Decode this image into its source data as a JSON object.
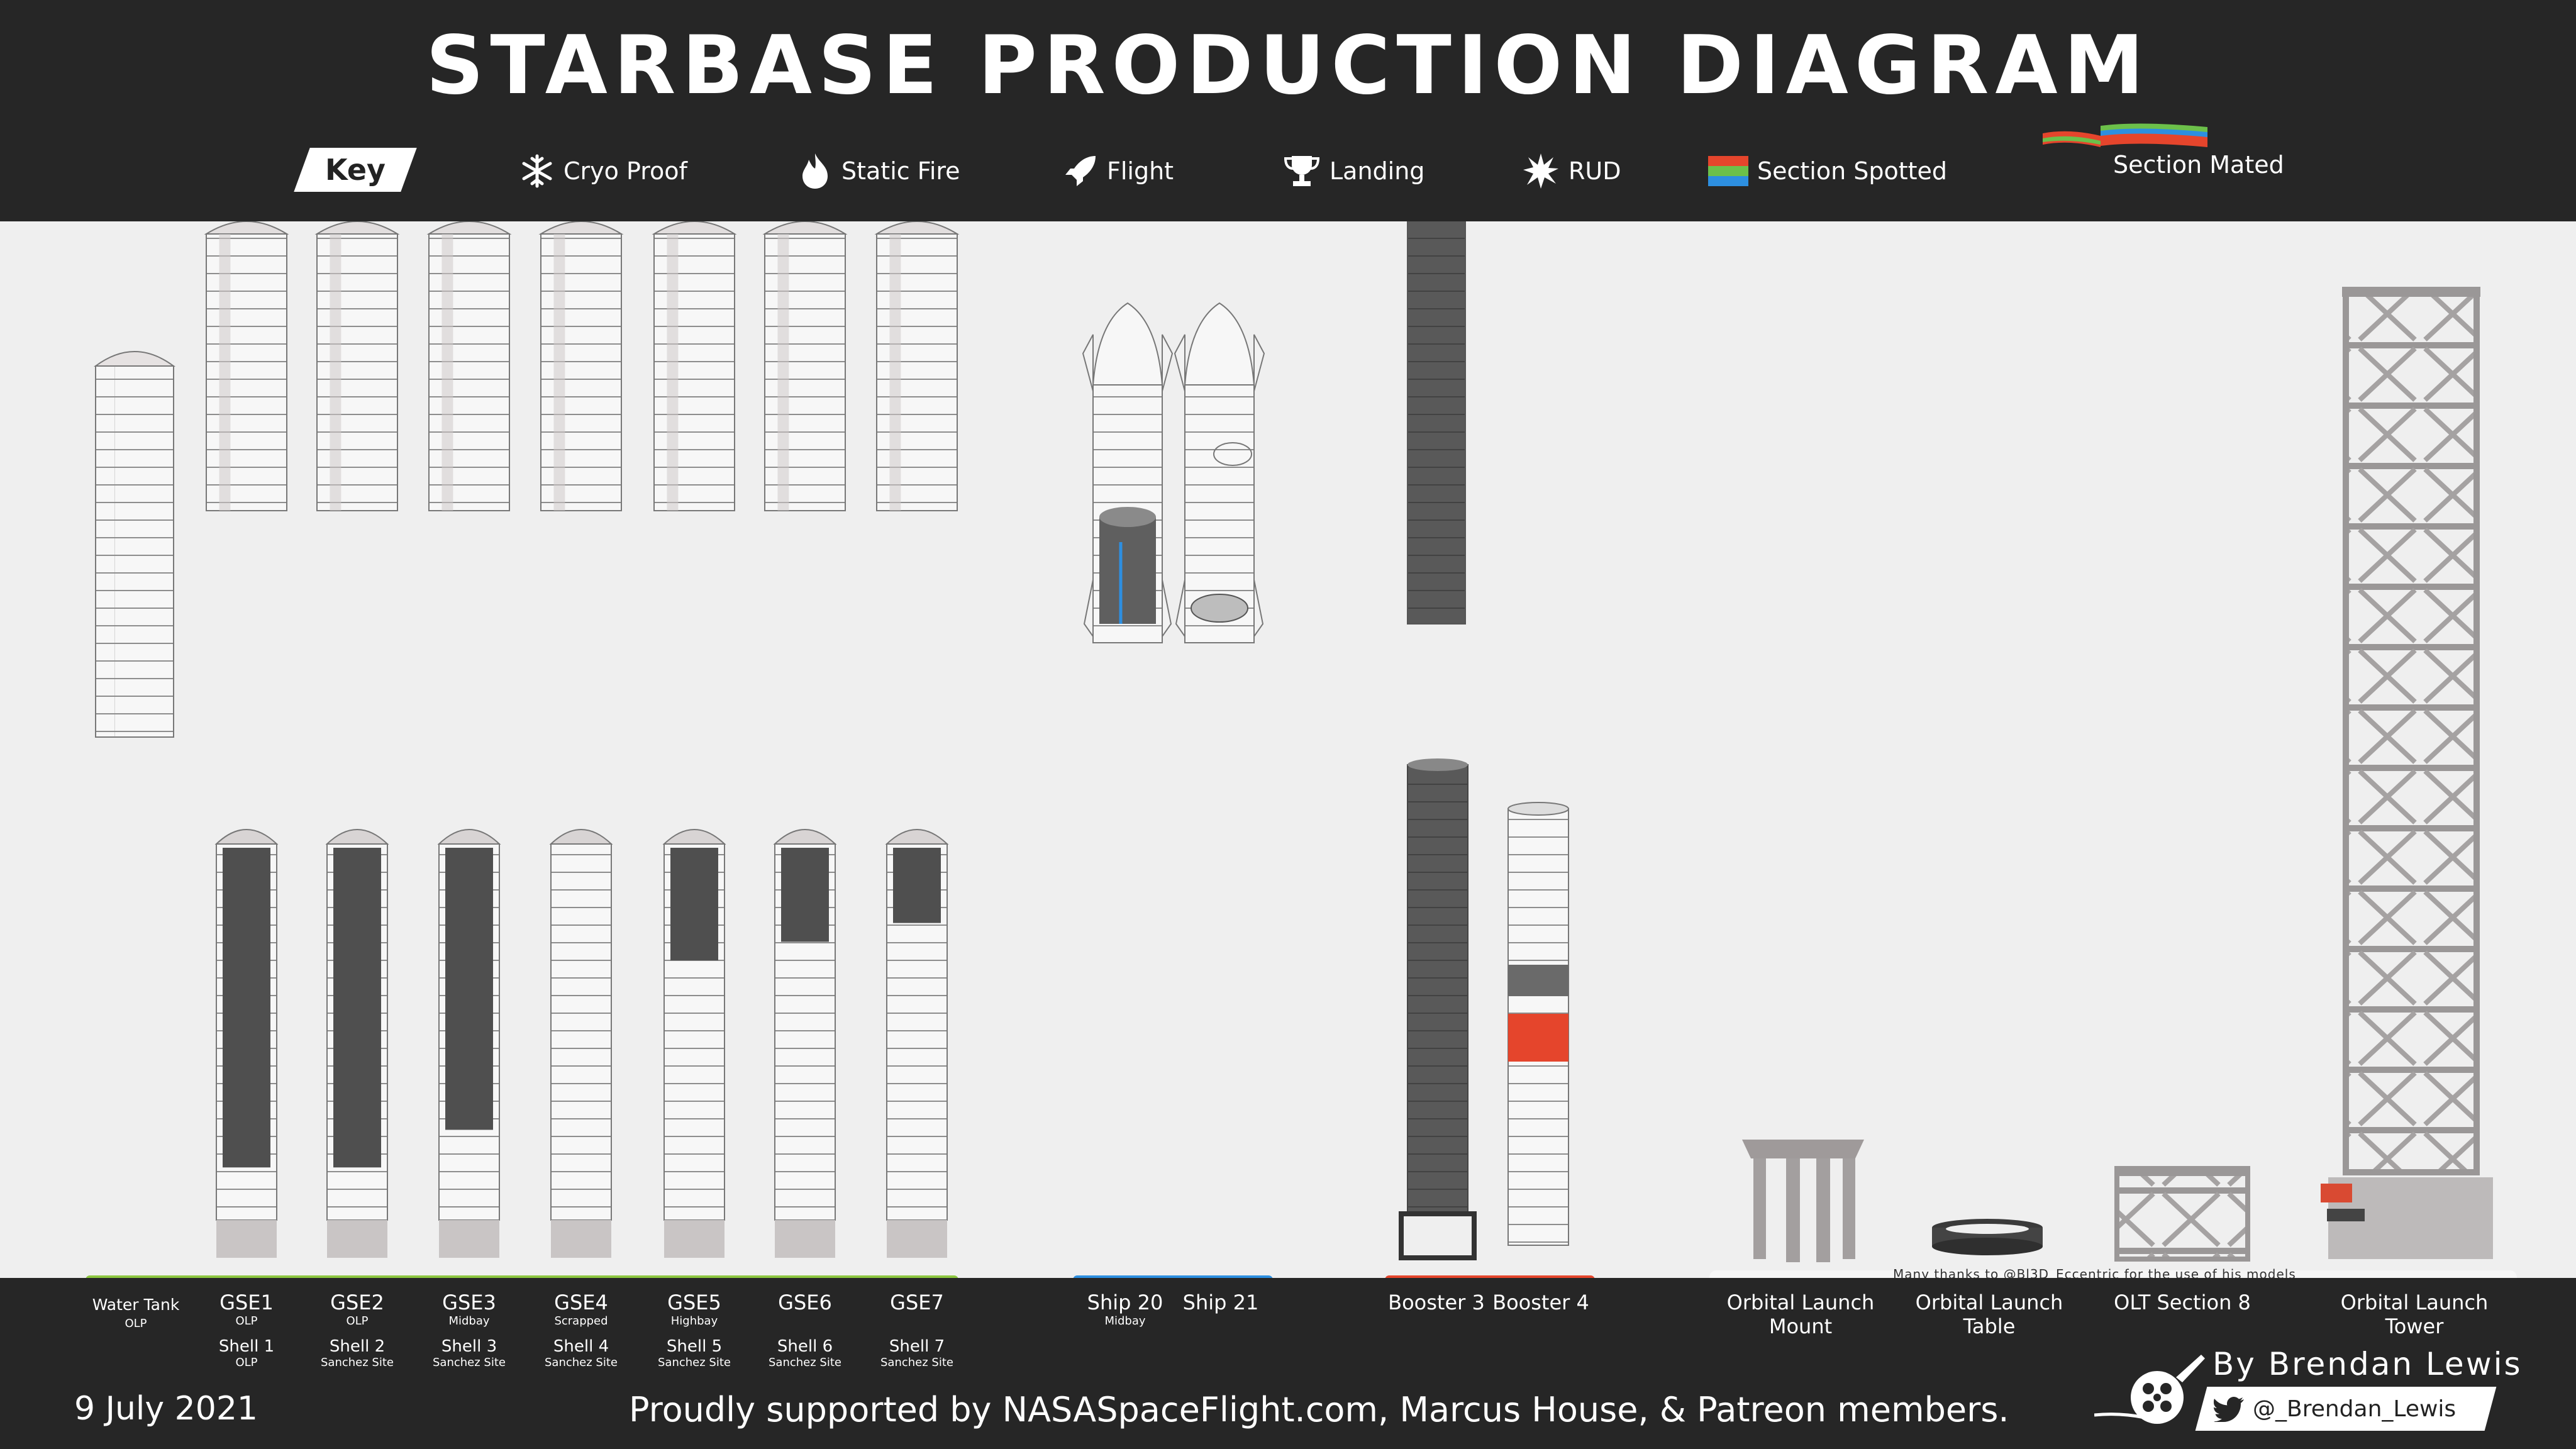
{
  "title": "STARBASE PRODUCTION DIAGRAM",
  "key": {
    "badge": "Key",
    "items": [
      {
        "icon": "snowflake-icon",
        "label": "Cryo Proof"
      },
      {
        "icon": "flame-icon",
        "label": "Static Fire"
      },
      {
        "icon": "rocket-icon",
        "label": "Flight"
      },
      {
        "icon": "trophy-icon",
        "label": "Landing"
      },
      {
        "icon": "explosion-icon",
        "label": "RUD"
      },
      {
        "icon": "section-spotted-icon",
        "label": "Section Spotted"
      },
      {
        "icon": "section-mated-icon",
        "label": "Section Mated"
      }
    ]
  },
  "groups": [
    {
      "name": "gse",
      "color": "#8cc63f"
    },
    {
      "name": "ships",
      "color": "#2d8fe0"
    },
    {
      "name": "boosters",
      "color": "#e5452c"
    },
    {
      "name": "infrastructure",
      "color": "#f5f5f5"
    }
  ],
  "labels": {
    "water_tank": {
      "main": "Water Tank",
      "sub": "OLP"
    },
    "gse1": {
      "main": "GSE1",
      "sub": "OLP",
      "shell": "Shell 1",
      "shell_sub": "OLP"
    },
    "gse2": {
      "main": "GSE2",
      "sub": "OLP",
      "shell": "Shell 2",
      "shell_sub": "Sanchez Site"
    },
    "gse3": {
      "main": "GSE3",
      "sub": "Midbay",
      "shell": "Shell 3",
      "shell_sub": "Sanchez Site"
    },
    "gse4": {
      "main": "GSE4",
      "sub": "Scrapped",
      "shell": "Shell 4",
      "shell_sub": "Sanchez Site"
    },
    "gse5": {
      "main": "GSE5",
      "sub": "Highbay",
      "shell": "Shell 5",
      "shell_sub": "Sanchez Site"
    },
    "gse6": {
      "main": "GSE6",
      "sub": "",
      "shell": "Shell 6",
      "shell_sub": "Sanchez Site"
    },
    "gse7": {
      "main": "GSE7",
      "sub": "",
      "shell": "Shell 7",
      "shell_sub": "Sanchez Site"
    },
    "ship20": {
      "main": "Ship 20",
      "sub": "Midbay"
    },
    "ship21": {
      "main": "Ship 21",
      "sub": ""
    },
    "booster3": {
      "main": "Booster 3"
    },
    "booster4": {
      "main": "Booster 4"
    },
    "olm": {
      "main": "Orbital Launch",
      "main2": "Mount"
    },
    "olt": {
      "main": "Orbital Launch",
      "main2": "Table"
    },
    "olt8": {
      "main": "OLT Section 8"
    },
    "tower": {
      "main": "Orbital Launch",
      "main2": "Tower"
    }
  },
  "thanks": "Many thanks to @Bl3D_Eccentric for the use of his models",
  "footer": {
    "date": "9 July 2021",
    "support": "Proudly supported by NASASpaceFlight.com, Marcus House, & Patreon members.",
    "byline": "By Brendan Lewis",
    "twitter": "@_Brendan_Lewis"
  }
}
